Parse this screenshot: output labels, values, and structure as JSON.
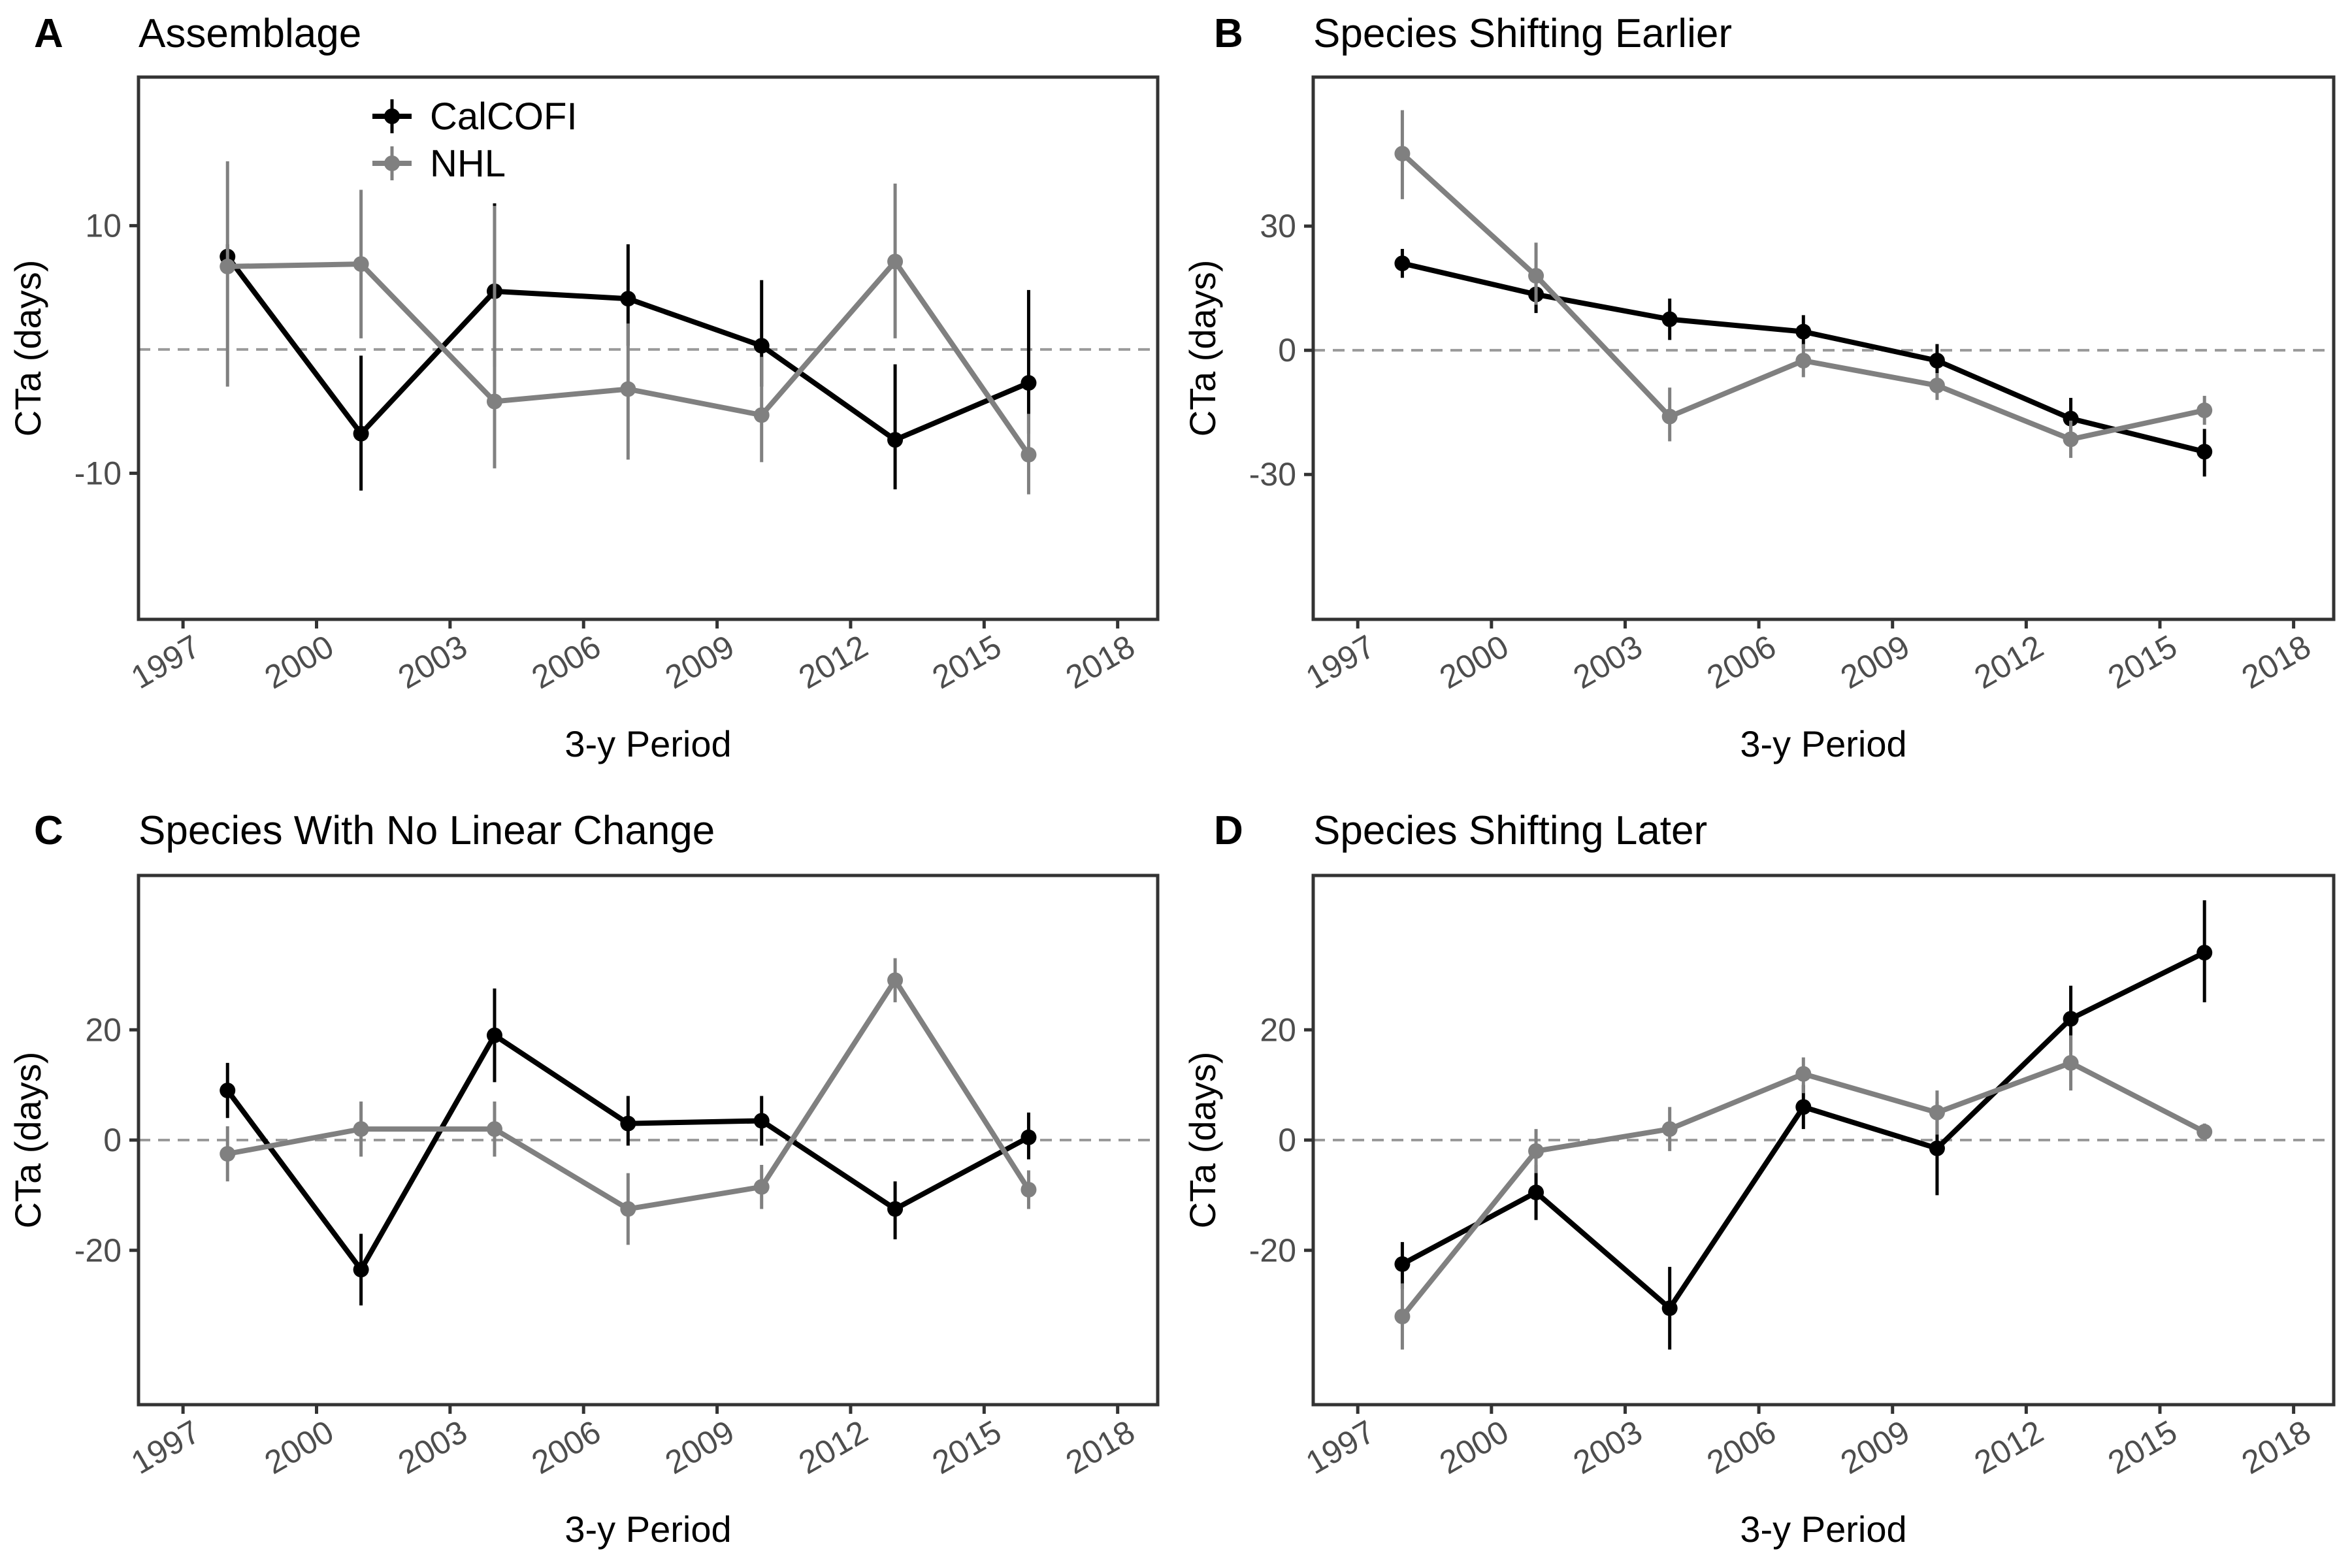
{
  "legend": {
    "position": "top-left inside panel A",
    "entries": [
      {
        "name": "CalCOFI",
        "color": "#000000"
      },
      {
        "name": "NHL",
        "color": "#808080"
      }
    ]
  },
  "chart_data": [
    {
      "type": "line",
      "panel": "A",
      "title": "Assemblage",
      "xlabel": "3-y Period",
      "ylabel": "CTa (days)",
      "x_ticks": [
        1997,
        2000,
        2003,
        2006,
        2009,
        2012,
        2015,
        2018
      ],
      "xlim": [
        1996,
        2018.9
      ],
      "y_ticks": [
        -10,
        10
      ],
      "ylim": [
        -21.8,
        22
      ],
      "reference_line_y": 0,
      "grid": false,
      "series": [
        {
          "name": "CalCOFI",
          "color": "#000000",
          "x": [
            1998,
            2001,
            2004,
            2007,
            2010,
            2013,
            2016
          ],
          "y": [
            7.5,
            -6.8,
            4.7,
            4.1,
            0.3,
            -7.3,
            -2.7
          ],
          "err_low": [
            6.5,
            -11.4,
            -1.4,
            0.3,
            -3.0,
            -11.3,
            -6.8
          ],
          "err_high": [
            8.5,
            -0.5,
            11.8,
            8.5,
            5.6,
            -1.2,
            4.8
          ]
        },
        {
          "name": "NHL",
          "color": "#808080",
          "x": [
            1998,
            2001,
            2004,
            2007,
            2010,
            2013,
            2016
          ],
          "y": [
            6.7,
            6.9,
            -4.2,
            -3.2,
            -5.3,
            7.1,
            -8.5
          ],
          "err_low": [
            -3.0,
            0.9,
            -9.6,
            -8.9,
            -9.1,
            0.9,
            -11.7
          ],
          "err_high": [
            15.2,
            12.9,
            11.6,
            2.1,
            -0.6,
            13.4,
            -5.2
          ]
        }
      ]
    },
    {
      "type": "line",
      "panel": "B",
      "title": "Species Shifting Earlier",
      "xlabel": "3-y Period",
      "ylabel": "CTa (days)",
      "x_ticks": [
        1997,
        2000,
        2003,
        2006,
        2009,
        2012,
        2015,
        2018
      ],
      "xlim": [
        1996,
        2018.9
      ],
      "y_ticks": [
        -30,
        0,
        30
      ],
      "ylim": [
        -65,
        66
      ],
      "reference_line_y": 0,
      "grid": false,
      "series": [
        {
          "name": "CalCOFI",
          "color": "#000000",
          "x": [
            1998,
            2001,
            2004,
            2007,
            2010,
            2013,
            2016
          ],
          "y": [
            21,
            13.5,
            7.5,
            4.5,
            -2.5,
            -16.5,
            -24.5
          ],
          "err_low": [
            17.5,
            9,
            2.5,
            0.5,
            -5.5,
            -20.5,
            -30.5
          ],
          "err_high": [
            24.5,
            18,
            12.5,
            8.5,
            1.5,
            -11.5,
            -19
          ]
        },
        {
          "name": "NHL",
          "color": "#808080",
          "x": [
            1998,
            2001,
            2004,
            2007,
            2010,
            2013,
            2016
          ],
          "y": [
            47.5,
            18,
            -16,
            -2.5,
            -8.5,
            -21.5,
            -14.5
          ],
          "err_low": [
            36.5,
            11,
            -22,
            -6.5,
            -12,
            -26,
            -18
          ],
          "err_high": [
            58,
            26,
            -9,
            1.5,
            -5.5,
            -17,
            -11
          ]
        }
      ]
    },
    {
      "type": "line",
      "panel": "C",
      "title": "Species With No Linear Change",
      "xlabel": "3-y Period",
      "ylabel": "CTa (days)",
      "x_ticks": [
        1997,
        2000,
        2003,
        2006,
        2009,
        2012,
        2015,
        2018
      ],
      "xlim": [
        1996,
        2018.9
      ],
      "y_ticks": [
        -20,
        0,
        20
      ],
      "ylim": [
        -48,
        48
      ],
      "reference_line_y": 0,
      "grid": false,
      "series": [
        {
          "name": "CalCOFI",
          "color": "#000000",
          "x": [
            1998,
            2001,
            2004,
            2007,
            2010,
            2013,
            2016
          ],
          "y": [
            9,
            -23.5,
            19,
            3,
            3.5,
            -12.5,
            0.5
          ],
          "err_low": [
            4,
            -30,
            10.5,
            -1,
            -1,
            -18,
            -3.5
          ],
          "err_high": [
            14,
            -17,
            27.5,
            8,
            8,
            -7.5,
            5
          ]
        },
        {
          "name": "NHL",
          "color": "#808080",
          "x": [
            1998,
            2001,
            2004,
            2007,
            2010,
            2013,
            2016
          ],
          "y": [
            -2.5,
            2,
            2,
            -12.5,
            -8.5,
            29,
            -9
          ],
          "err_low": [
            -7.5,
            -3,
            -3,
            -19,
            -12.5,
            25,
            -12.5
          ],
          "err_high": [
            2.5,
            7,
            7,
            -6,
            -4.5,
            33,
            -5.5
          ]
        }
      ]
    },
    {
      "type": "line",
      "panel": "D",
      "title": "Species Shifting Later",
      "xlabel": "3-y Period",
      "ylabel": "CTa (days)",
      "x_ticks": [
        1997,
        2000,
        2003,
        2006,
        2009,
        2012,
        2015,
        2018
      ],
      "xlim": [
        1996,
        2018.9
      ],
      "y_ticks": [
        -20,
        0,
        20
      ],
      "ylim": [
        -48,
        48
      ],
      "reference_line_y": 0,
      "grid": false,
      "series": [
        {
          "name": "CalCOFI",
          "color": "#000000",
          "x": [
            1998,
            2001,
            2004,
            2007,
            2010,
            2013,
            2016
          ],
          "y": [
            -22.5,
            -9.5,
            -30.5,
            6,
            -1.5,
            22,
            34
          ],
          "err_low": [
            -27,
            -14.5,
            -38,
            2,
            -10,
            16,
            25
          ],
          "err_high": [
            -18.5,
            -4.5,
            -23,
            10,
            7,
            28,
            43.5
          ]
        },
        {
          "name": "NHL",
          "color": "#808080",
          "x": [
            1998,
            2001,
            2004,
            2007,
            2010,
            2013,
            2016
          ],
          "y": [
            -32,
            -2,
            2,
            12,
            5,
            14,
            1.5
          ],
          "err_low": [
            -38,
            -6,
            -2,
            8.5,
            1,
            9,
            0
          ],
          "err_high": [
            -26,
            2,
            6,
            15,
            9,
            19,
            3
          ]
        }
      ]
    }
  ]
}
